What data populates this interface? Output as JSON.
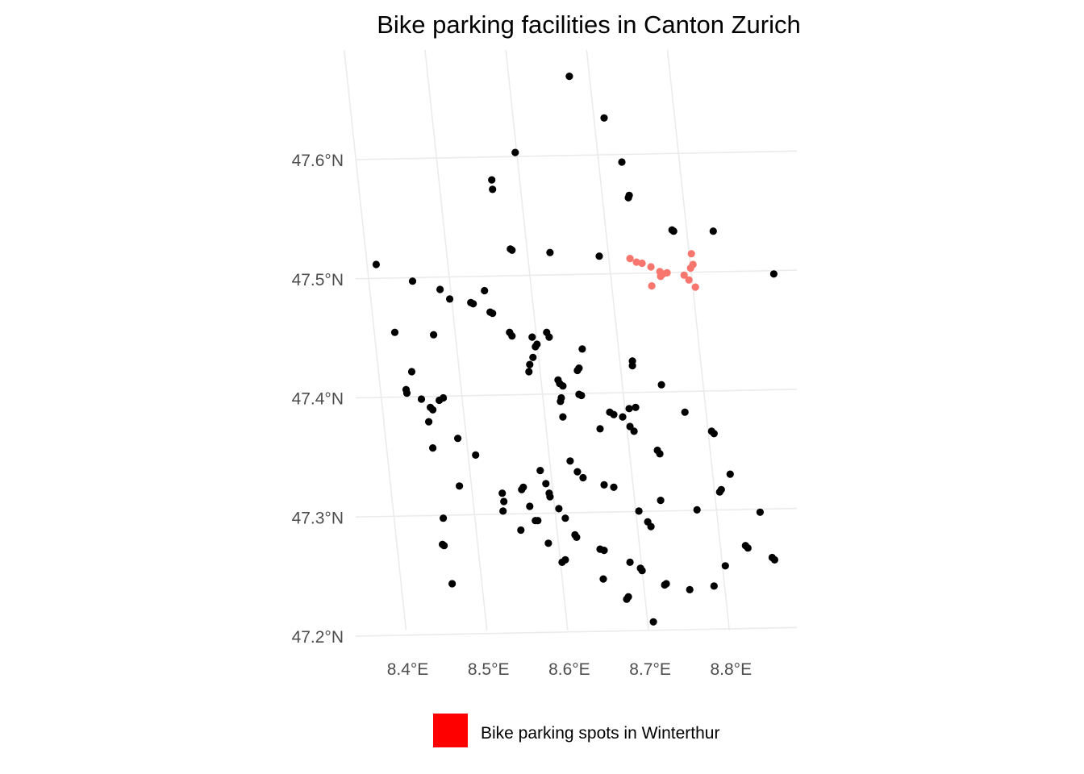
{
  "chart_data": {
    "type": "scatter",
    "title": "Bike parking facilities in Canton Zurich",
    "xlabel": "",
    "ylabel": "",
    "x_ticks": [
      {
        "value": 8.4,
        "label": "8.4°E"
      },
      {
        "value": 8.5,
        "label": "8.5°E"
      },
      {
        "value": 8.6,
        "label": "8.6°E"
      },
      {
        "value": 8.7,
        "label": "8.7°E"
      },
      {
        "value": 8.8,
        "label": "8.8°E"
      }
    ],
    "y_ticks": [
      {
        "value": 47.2,
        "label": "47.2°N"
      },
      {
        "value": 47.3,
        "label": "47.3°N"
      },
      {
        "value": 47.4,
        "label": "47.4°N"
      },
      {
        "value": 47.5,
        "label": "47.5°N"
      },
      {
        "value": 47.6,
        "label": "47.6°N"
      }
    ],
    "xlim": [
      8.35,
      8.89
    ],
    "ylim": [
      47.19,
      47.69
    ],
    "grid": true,
    "legend_position": "bottom",
    "legend": [
      {
        "label": "Bike parking spots in Winterthur",
        "color": "#ff0000"
      }
    ],
    "series": [
      {
        "color": "#000000",
        "points": [
          [
            8.602,
            47.67
          ],
          [
            8.645,
            47.635
          ],
          [
            8.535,
            47.606
          ],
          [
            8.667,
            47.598
          ],
          [
            8.506,
            47.583
          ],
          [
            8.507,
            47.575
          ],
          [
            8.676,
            47.57
          ],
          [
            8.675,
            47.568
          ],
          [
            8.731,
            47.54
          ],
          [
            8.729,
            47.541
          ],
          [
            8.78,
            47.54
          ],
          [
            8.531,
            47.524
          ],
          [
            8.529,
            47.525
          ],
          [
            8.578,
            47.522
          ],
          [
            8.639,
            47.519
          ],
          [
            8.363,
            47.512
          ],
          [
            8.855,
            47.504
          ],
          [
            8.408,
            47.498
          ],
          [
            8.442,
            47.491
          ],
          [
            8.497,
            47.49
          ],
          [
            8.454,
            47.483
          ],
          [
            8.483,
            47.479
          ],
          [
            8.48,
            47.48
          ],
          [
            8.504,
            47.472
          ],
          [
            8.507,
            47.471
          ],
          [
            8.386,
            47.455
          ],
          [
            8.528,
            47.455
          ],
          [
            8.531,
            47.452
          ],
          [
            8.434,
            47.453
          ],
          [
            8.556,
            47.451
          ],
          [
            8.574,
            47.455
          ],
          [
            8.577,
            47.451
          ],
          [
            8.562,
            47.445
          ],
          [
            8.56,
            47.443
          ],
          [
            8.618,
            47.441
          ],
          [
            8.557,
            47.434
          ],
          [
            8.553,
            47.428
          ],
          [
            8.552,
            47.422
          ],
          [
            8.68,
            47.431
          ],
          [
            8.68,
            47.427
          ],
          [
            8.614,
            47.425
          ],
          [
            8.612,
            47.423
          ],
          [
            8.407,
            47.422
          ],
          [
            8.588,
            47.415
          ],
          [
            8.59,
            47.412
          ],
          [
            8.594,
            47.41
          ],
          [
            8.716,
            47.411
          ],
          [
            8.4,
            47.407
          ],
          [
            8.401,
            47.404
          ],
          [
            8.614,
            47.403
          ],
          [
            8.617,
            47.402
          ],
          [
            8.446,
            47.4
          ],
          [
            8.441,
            47.398
          ],
          [
            8.419,
            47.399
          ],
          [
            8.592,
            47.4
          ],
          [
            8.591,
            47.397
          ],
          [
            8.43,
            47.392
          ],
          [
            8.433,
            47.39
          ],
          [
            8.684,
            47.392
          ],
          [
            8.676,
            47.391
          ],
          [
            8.745,
            47.388
          ],
          [
            8.652,
            47.388
          ],
          [
            8.657,
            47.386
          ],
          [
            8.594,
            47.384
          ],
          [
            8.668,
            47.384
          ],
          [
            8.428,
            47.38
          ],
          [
            8.677,
            47.376
          ],
          [
            8.682,
            47.372
          ],
          [
            8.64,
            47.374
          ],
          [
            8.778,
            47.372
          ],
          [
            8.781,
            47.37
          ],
          [
            8.464,
            47.366
          ],
          [
            8.433,
            47.358
          ],
          [
            8.711,
            47.356
          ],
          [
            8.714,
            47.353
          ],
          [
            8.486,
            47.352
          ],
          [
            8.603,
            47.347
          ],
          [
            8.566,
            47.339
          ],
          [
            8.612,
            47.338
          ],
          [
            8.619,
            47.333
          ],
          [
            8.801,
            47.336
          ],
          [
            8.573,
            47.328
          ],
          [
            8.466,
            47.326
          ],
          [
            8.545,
            47.325
          ],
          [
            8.543,
            47.323
          ],
          [
            8.645,
            47.327
          ],
          [
            8.657,
            47.325
          ],
          [
            8.79,
            47.323
          ],
          [
            8.788,
            47.321
          ],
          [
            8.519,
            47.32
          ],
          [
            8.577,
            47.32
          ],
          [
            8.578,
            47.317
          ],
          [
            8.521,
            47.313
          ],
          [
            8.715,
            47.314
          ],
          [
            8.553,
            47.309
          ],
          [
            8.52,
            47.305
          ],
          [
            8.589,
            47.307
          ],
          [
            8.688,
            47.305
          ],
          [
            8.76,
            47.306
          ],
          [
            8.838,
            47.304
          ],
          [
            8.446,
            47.299
          ],
          [
            8.56,
            47.297
          ],
          [
            8.563,
            47.297
          ],
          [
            8.597,
            47.299
          ],
          [
            8.699,
            47.296
          ],
          [
            8.703,
            47.292
          ],
          [
            8.542,
            47.289
          ],
          [
            8.609,
            47.285
          ],
          [
            8.611,
            47.283
          ],
          [
            8.576,
            47.278
          ],
          [
            8.445,
            47.277
          ],
          [
            8.447,
            47.276
          ],
          [
            8.82,
            47.276
          ],
          [
            8.823,
            47.274
          ],
          [
            8.64,
            47.273
          ],
          [
            8.645,
            47.272
          ],
          [
            8.853,
            47.266
          ],
          [
            8.856,
            47.264
          ],
          [
            8.597,
            47.264
          ],
          [
            8.593,
            47.262
          ],
          [
            8.677,
            47.262
          ],
          [
            8.69,
            47.257
          ],
          [
            8.692,
            47.255
          ],
          [
            8.795,
            47.259
          ],
          [
            8.457,
            47.244
          ],
          [
            8.644,
            47.248
          ],
          [
            8.722,
            47.244
          ],
          [
            8.72,
            47.243
          ],
          [
            8.781,
            47.242
          ],
          [
            8.751,
            47.239
          ],
          [
            8.675,
            47.233
          ],
          [
            8.673,
            47.231
          ],
          [
            8.706,
            47.212
          ]
        ]
      },
      {
        "color": "#f8766d",
        "points": [
          [
            8.677,
            47.517
          ],
          [
            8.685,
            47.514
          ],
          [
            8.692,
            47.513
          ],
          [
            8.703,
            47.51
          ],
          [
            8.714,
            47.506
          ],
          [
            8.718,
            47.504
          ],
          [
            8.723,
            47.505
          ],
          [
            8.715,
            47.502
          ],
          [
            8.753,
            47.521
          ],
          [
            8.755,
            47.512
          ],
          [
            8.752,
            47.509
          ],
          [
            8.744,
            47.503
          ],
          [
            8.75,
            47.499
          ],
          [
            8.758,
            47.493
          ],
          [
            8.704,
            47.494
          ]
        ]
      }
    ]
  }
}
